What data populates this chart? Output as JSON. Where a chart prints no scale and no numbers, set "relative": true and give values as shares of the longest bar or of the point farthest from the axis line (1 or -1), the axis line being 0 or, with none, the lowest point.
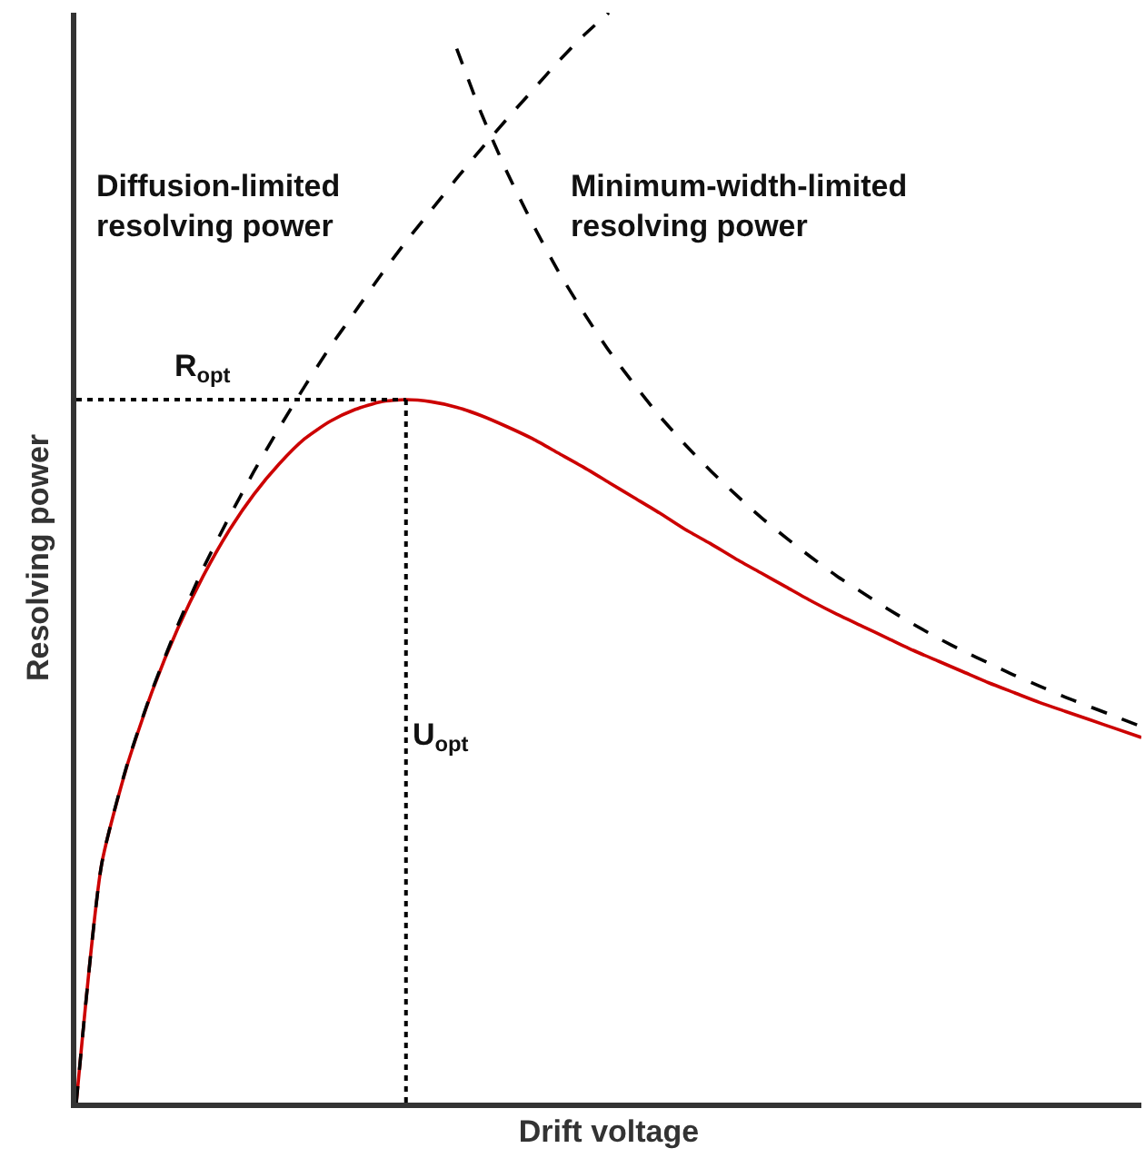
{
  "chart_data": {
    "type": "line",
    "relative": true,
    "xlabel": "Drift voltage",
    "ylabel": "Resolving power",
    "categories": [
      null,
      null,
      null,
      null,
      null,
      null,
      null,
      null,
      null,
      null,
      null,
      null,
      null,
      null,
      null,
      null,
      null,
      null,
      null,
      null,
      null,
      null,
      null,
      null,
      null,
      null,
      null,
      null,
      null,
      null,
      null,
      null,
      null,
      null,
      null,
      null,
      null,
      null,
      null,
      null,
      null,
      null,
      null
    ],
    "series": [
      {
        "color": "#000000",
        "line_style": "dashed",
        "values": [
          0,
          0.219,
          0.31,
          0.379,
          0.438,
          0.49,
          0.536,
          0.579,
          0.619,
          0.657,
          0.693,
          0.726,
          0.759,
          0.79,
          0.819,
          0.848,
          0.876,
          0.903,
          0.929,
          0.955,
          0.979,
          1.0,
          null,
          null,
          null,
          null,
          null,
          null,
          null,
          null,
          null,
          null,
          null,
          null,
          null,
          null,
          null,
          null,
          null,
          null,
          null,
          null,
          null
        ]
      },
      {
        "color": "#000000",
        "line_style": "dashed",
        "values": [
          null,
          null,
          null,
          null,
          null,
          null,
          null,
          null,
          null,
          null,
          null,
          null,
          null,
          null,
          null,
          0.967,
          0.906,
          0.853,
          0.806,
          0.763,
          0.725,
          0.69,
          0.659,
          0.63,
          0.604,
          0.58,
          0.558,
          0.537,
          0.518,
          0.5,
          0.483,
          0.468,
          0.453,
          0.439,
          0.426,
          0.414,
          0.403,
          0.392,
          0.382,
          0.372,
          0.363,
          0.354,
          0.345
        ]
      },
      {
        "color": "#cc0000",
        "line_style": "solid",
        "values": [
          0,
          0.219,
          0.309,
          0.378,
          0.435,
          0.483,
          0.524,
          0.558,
          0.586,
          0.609,
          0.625,
          0.636,
          0.643,
          0.645,
          0.643,
          0.638,
          0.63,
          0.62,
          0.609,
          0.596,
          0.583,
          0.569,
          0.555,
          0.541,
          0.526,
          0.513,
          0.499,
          0.486,
          0.473,
          0.46,
          0.448,
          0.437,
          0.426,
          0.415,
          0.405,
          0.395,
          0.385,
          0.376,
          0.367,
          0.359,
          0.351,
          0.343,
          0.335
        ]
      }
    ],
    "ref_lines": [
      {
        "axis": "y",
        "value": 0.645,
        "label": "R$_{opt}$",
        "color": "#000000",
        "line_style": "dotted"
      }
    ],
    "annotations": [
      "Diffusion-limited\nresolving power",
      "Minimum-width-limited\nresolving power",
      "U$_{opt}$"
    ],
    "marker": "none"
  }
}
